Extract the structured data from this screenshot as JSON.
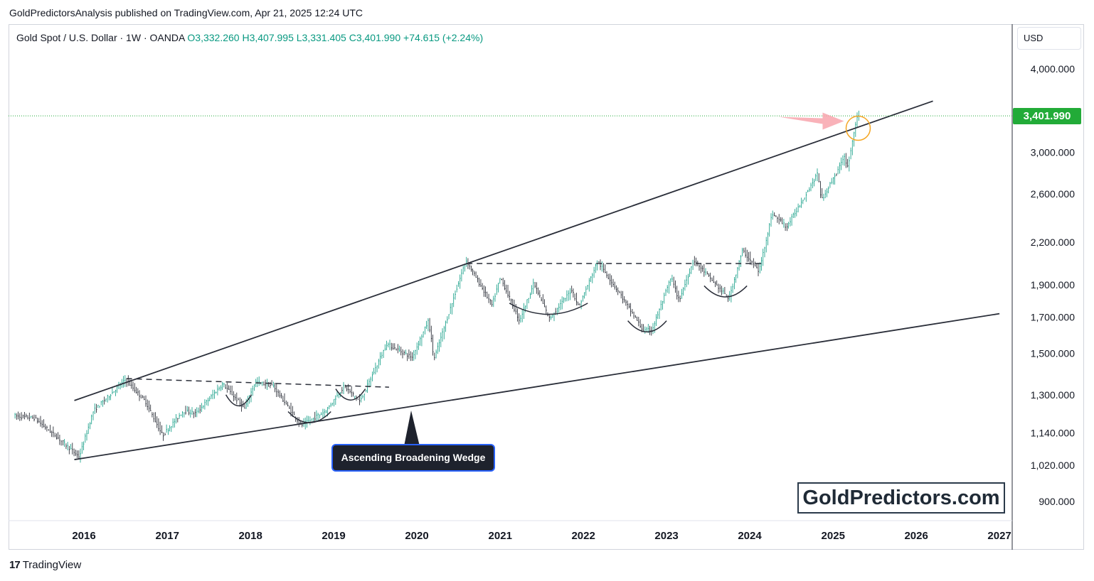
{
  "header": {
    "publisher_text": "GoldPredictorsAnalysis published on TradingView.com, Apr 21, 2025 12:24 UTC"
  },
  "legend": {
    "symbol": "Gold Spot / U.S. Dollar · 1W · OANDA",
    "open": "O3,332.260",
    "high": "H3,407.995",
    "low": "L3,331.405",
    "close": "C3,401.990",
    "change": "+74.615 (+2.24%)"
  },
  "currency": "USD",
  "last_price_label": "3,401.990",
  "watermark": "GoldPredictors.com",
  "annotation": "Ascending Broadening Wedge",
  "footer": {
    "logo_glyph": "17",
    "brand": "TradingView"
  },
  "colors": {
    "candle_up": "#089981",
    "candle_down": "#131722",
    "last_price": "#22ab38",
    "trendline": "#2a2e39",
    "highlight_circle": "#f5a623",
    "highlight_arrow": "#f8a5ad"
  },
  "chart_data": {
    "type": "candlestick",
    "interval": "1W",
    "y_scale": "log",
    "y_ticks": [
      {
        "value": 4000,
        "label": "4,000.000"
      },
      {
        "value": 3000,
        "label": "3,000.000"
      },
      {
        "value": 2600,
        "label": "2,600.000"
      },
      {
        "value": 2200,
        "label": "2,200.000"
      },
      {
        "value": 1900,
        "label": "1,900.000"
      },
      {
        "value": 1700,
        "label": "1,700.000"
      },
      {
        "value": 1500,
        "label": "1,500.000"
      },
      {
        "value": 1300,
        "label": "1,300.000"
      },
      {
        "value": 1140,
        "label": "1,140.000"
      },
      {
        "value": 1020,
        "label": "1,020.000"
      },
      {
        "value": 900,
        "label": "900.000"
      }
    ],
    "x_ticks": [
      "2016",
      "2017",
      "2018",
      "2019",
      "2020",
      "2021",
      "2022",
      "2023",
      "2024",
      "2025",
      "2026",
      "2027"
    ],
    "price_path": [
      {
        "date": "2015-03-01",
        "price": 1210
      },
      {
        "date": "2015-06-01",
        "price": 1200
      },
      {
        "date": "2015-09-01",
        "price": 1130
      },
      {
        "date": "2015-12-15",
        "price": 1050
      },
      {
        "date": "2016-02-15",
        "price": 1230
      },
      {
        "date": "2016-07-05",
        "price": 1370
      },
      {
        "date": "2016-10-01",
        "price": 1270
      },
      {
        "date": "2016-12-15",
        "price": 1130
      },
      {
        "date": "2017-03-15",
        "price": 1230
      },
      {
        "date": "2017-05-10",
        "price": 1220
      },
      {
        "date": "2017-09-05",
        "price": 1350
      },
      {
        "date": "2017-12-10",
        "price": 1240
      },
      {
        "date": "2018-01-25",
        "price": 1360
      },
      {
        "date": "2018-04-15",
        "price": 1340
      },
      {
        "date": "2018-08-15",
        "price": 1170
      },
      {
        "date": "2018-12-01",
        "price": 1230
      },
      {
        "date": "2019-02-20",
        "price": 1340
      },
      {
        "date": "2019-05-01",
        "price": 1270
      },
      {
        "date": "2019-08-25",
        "price": 1550
      },
      {
        "date": "2019-12-15",
        "price": 1480
      },
      {
        "date": "2020-02-25",
        "price": 1680
      },
      {
        "date": "2020-03-20",
        "price": 1470
      },
      {
        "date": "2020-08-07",
        "price": 2070
      },
      {
        "date": "2020-11-30",
        "price": 1770
      },
      {
        "date": "2021-01-05",
        "price": 1950
      },
      {
        "date": "2021-03-30",
        "price": 1680
      },
      {
        "date": "2021-06-01",
        "price": 1910
      },
      {
        "date": "2021-08-09",
        "price": 1690
      },
      {
        "date": "2021-11-15",
        "price": 1870
      },
      {
        "date": "2021-12-15",
        "price": 1760
      },
      {
        "date": "2022-03-08",
        "price": 2060
      },
      {
        "date": "2022-06-15",
        "price": 1840
      },
      {
        "date": "2022-09-26",
        "price": 1620
      },
      {
        "date": "2022-11-03",
        "price": 1630
      },
      {
        "date": "2023-01-25",
        "price": 1950
      },
      {
        "date": "2023-02-28",
        "price": 1800
      },
      {
        "date": "2023-05-04",
        "price": 2070
      },
      {
        "date": "2023-10-05",
        "price": 1810
      },
      {
        "date": "2023-12-04",
        "price": 2140
      },
      {
        "date": "2024-02-14",
        "price": 1990
      },
      {
        "date": "2024-04-12",
        "price": 2430
      },
      {
        "date": "2024-06-15",
        "price": 2320
      },
      {
        "date": "2024-10-30",
        "price": 2790
      },
      {
        "date": "2024-11-14",
        "price": 2540
      },
      {
        "date": "2025-02-24",
        "price": 2950
      },
      {
        "date": "2025-03-10",
        "price": 2850
      },
      {
        "date": "2025-04-14",
        "price": 3330
      },
      {
        "date": "2025-04-21",
        "price": 3402
      }
    ],
    "last_price": 3401.99,
    "trendlines": [
      {
        "name": "upper-wedge-line",
        "style": "solid",
        "points": [
          {
            "date": "2015-11-20",
            "price": 1275
          },
          {
            "date": "2026-03-15",
            "price": 3580
          }
        ]
      },
      {
        "name": "lower-wedge-line",
        "style": "solid",
        "points": [
          {
            "date": "2015-11-20",
            "price": 1040
          },
          {
            "date": "2027-01-01",
            "price": 1720
          }
        ]
      },
      {
        "name": "resistance-2016-2019",
        "style": "dashed",
        "points": [
          {
            "date": "2016-07-05",
            "price": 1375
          },
          {
            "date": "2019-09-01",
            "price": 1335
          }
        ]
      },
      {
        "name": "resistance-2020-2024",
        "style": "dashed",
        "points": [
          {
            "date": "2020-08-07",
            "price": 2045
          },
          {
            "date": "2024-03-01",
            "price": 2045
          }
        ]
      }
    ],
    "rounded_bottoms": [
      {
        "start": "2017-09-15",
        "end": "2018-01-05",
        "low": 1240
      },
      {
        "start": "2018-06-15",
        "end": "2018-12-20",
        "low": 1170
      },
      {
        "start": "2019-01-10",
        "end": "2019-05-20",
        "low": 1265
      },
      {
        "start": "2021-02-10",
        "end": "2022-01-20",
        "low": 1700
      },
      {
        "start": "2022-07-15",
        "end": "2023-01-01",
        "low": 1600
      },
      {
        "start": "2023-06-15",
        "end": "2023-12-20",
        "low": 1805
      }
    ],
    "highlight": {
      "date": "2025-04-21",
      "price": 3260
    }
  }
}
